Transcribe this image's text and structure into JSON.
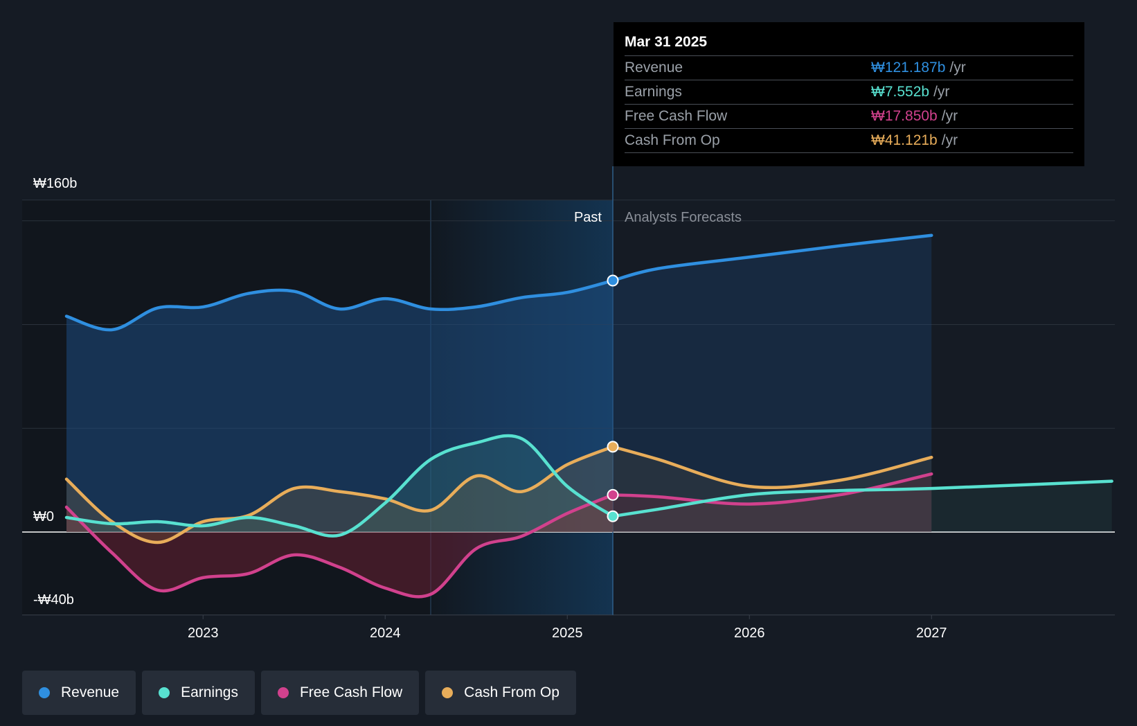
{
  "chart_data": {
    "type": "line",
    "currency_unit": "₩",
    "y_axis": {
      "max_label": "₩160b",
      "zero_label": "₩0",
      "min_label": "-₩40b",
      "ylim": [
        -40,
        160
      ]
    },
    "x_ticks": [
      "2023",
      "2024",
      "2025",
      "2026",
      "2027"
    ],
    "x_range": [
      2022.25,
      2027.99
    ],
    "divider_date": 2025.25,
    "past_label": "Past",
    "forecast_label": "Analysts Forecasts",
    "series": [
      {
        "name": "Revenue",
        "color": "#2f8fe0",
        "past": [
          [
            2022.25,
            104
          ],
          [
            2022.5,
            97.5
          ],
          [
            2022.75,
            108
          ],
          [
            2023.0,
            108.5
          ],
          [
            2023.25,
            115
          ],
          [
            2023.5,
            116
          ],
          [
            2023.75,
            107.5
          ],
          [
            2024.0,
            112.5
          ],
          [
            2024.25,
            107.5
          ],
          [
            2024.5,
            108.5
          ],
          [
            2024.75,
            113
          ],
          [
            2025.0,
            115.5
          ],
          [
            2025.25,
            121.2
          ]
        ],
        "forecast": [
          [
            2025.25,
            121.2
          ],
          [
            2025.5,
            127
          ],
          [
            2026.0,
            132.5
          ],
          [
            2026.5,
            138
          ],
          [
            2027.0,
            143
          ]
        ]
      },
      {
        "name": "Earnings",
        "color": "#58e1d0",
        "past": [
          [
            2022.25,
            7
          ],
          [
            2022.5,
            4
          ],
          [
            2022.75,
            5
          ],
          [
            2023.0,
            3
          ],
          [
            2023.25,
            7
          ],
          [
            2023.5,
            3
          ],
          [
            2023.75,
            -1.5
          ],
          [
            2024.0,
            14
          ],
          [
            2024.25,
            35
          ],
          [
            2024.5,
            43
          ],
          [
            2024.75,
            45
          ],
          [
            2025.0,
            22
          ],
          [
            2025.25,
            7.6
          ]
        ],
        "forecast": [
          [
            2025.25,
            7.6
          ],
          [
            2025.5,
            11
          ],
          [
            2026.0,
            18
          ],
          [
            2026.5,
            20
          ],
          [
            2027.0,
            21
          ],
          [
            2027.99,
            24.5
          ]
        ]
      },
      {
        "name": "Free Cash Flow",
        "color": "#d1418d",
        "past": [
          [
            2022.25,
            12
          ],
          [
            2022.5,
            -10
          ],
          [
            2022.75,
            -28
          ],
          [
            2023.0,
            -22
          ],
          [
            2023.25,
            -20
          ],
          [
            2023.5,
            -11
          ],
          [
            2023.75,
            -17
          ],
          [
            2024.0,
            -27
          ],
          [
            2024.25,
            -30
          ],
          [
            2024.5,
            -8
          ],
          [
            2024.75,
            -2
          ],
          [
            2025.0,
            9
          ],
          [
            2025.25,
            17.9
          ]
        ],
        "forecast": [
          [
            2025.25,
            17.9
          ],
          [
            2025.5,
            17
          ],
          [
            2026.0,
            13.5
          ],
          [
            2026.5,
            18
          ],
          [
            2027.0,
            28
          ]
        ]
      },
      {
        "name": "Cash From Op",
        "color": "#e8ad5a",
        "past": [
          [
            2022.25,
            25.5
          ],
          [
            2022.5,
            5
          ],
          [
            2022.75,
            -5
          ],
          [
            2023.0,
            5
          ],
          [
            2023.25,
            8
          ],
          [
            2023.5,
            21
          ],
          [
            2023.75,
            19.5
          ],
          [
            2024.0,
            16
          ],
          [
            2024.25,
            10.5
          ],
          [
            2024.5,
            27
          ],
          [
            2024.75,
            19.5
          ],
          [
            2025.0,
            32.5
          ],
          [
            2025.25,
            41.1
          ]
        ],
        "forecast": [
          [
            2025.25,
            41.1
          ],
          [
            2025.5,
            35
          ],
          [
            2026.0,
            22
          ],
          [
            2026.5,
            25
          ],
          [
            2027.0,
            36
          ]
        ]
      }
    ]
  },
  "tooltip": {
    "date": "Mar 31 2025",
    "rows": [
      {
        "label": "Revenue",
        "value": "₩121.187b",
        "unit": "/yr",
        "color": "#2f8fe0"
      },
      {
        "label": "Earnings",
        "value": "₩7.552b",
        "unit": "/yr",
        "color": "#58e1d0"
      },
      {
        "label": "Free Cash Flow",
        "value": "₩17.850b",
        "unit": "/yr",
        "color": "#d1418d"
      },
      {
        "label": "Cash From Op",
        "value": "₩41.121b",
        "unit": "/yr",
        "color": "#e8ad5a"
      }
    ]
  },
  "legend": [
    {
      "label": "Revenue",
      "color": "#2f8fe0"
    },
    {
      "label": "Earnings",
      "color": "#58e1d0"
    },
    {
      "label": "Free Cash Flow",
      "color": "#d1418d"
    },
    {
      "label": "Cash From Op",
      "color": "#e8ad5a"
    }
  ]
}
